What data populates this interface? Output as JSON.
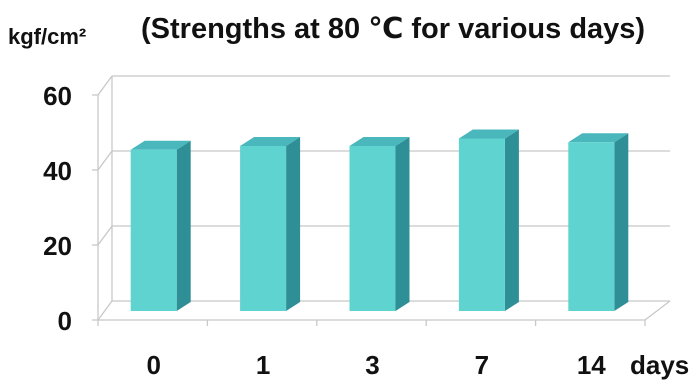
{
  "chart_data": {
    "type": "bar",
    "title": "(Strengths at 80 ℃ for various days)",
    "ylabel": "kgf/cm²",
    "xlabel": "days",
    "categories": [
      "0",
      "1",
      "3",
      "7",
      "14"
    ],
    "values": [
      43,
      44,
      44,
      46,
      45
    ],
    "ylim": [
      0,
      60
    ],
    "yticks": [
      0,
      20,
      40,
      60
    ],
    "grid": true,
    "style": "3d-bar",
    "colors": {
      "bar_front": "#5fd3d0",
      "bar_side": "#2e8f97",
      "bar_top": "#49b7bc",
      "grid": "#c8c8c8"
    }
  }
}
